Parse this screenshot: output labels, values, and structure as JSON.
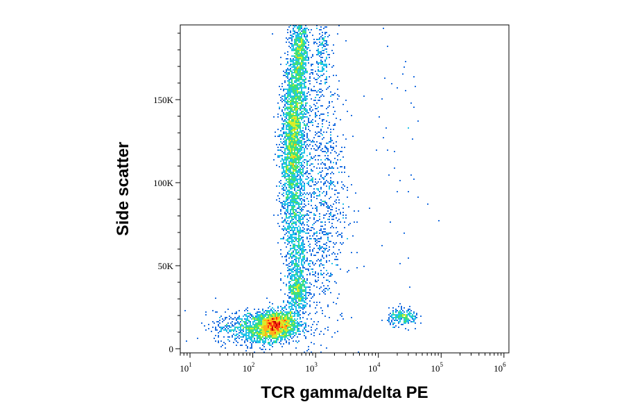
{
  "chart_data": {
    "type": "scatter",
    "style": "flow-cytometry pseudocolor density plot",
    "xlabel": "TCR gamma/delta PE",
    "ylabel": "Side scatter",
    "x_scale": "log",
    "xlim": [
      7,
      1200000
    ],
    "ylim": [
      -2500,
      195000
    ],
    "x_ticks": [
      {
        "base": "10",
        "exp": "1",
        "value": 10
      },
      {
        "base": "10",
        "exp": "2",
        "value": 100
      },
      {
        "base": "10",
        "exp": "3",
        "value": 1000
      },
      {
        "base": "10",
        "exp": "4",
        "value": 10000
      },
      {
        "base": "10",
        "exp": "5",
        "value": 100000
      },
      {
        "base": "10",
        "exp": "6",
        "value": 1000000
      }
    ],
    "y_ticks": [
      {
        "label": "0",
        "value": 0
      },
      {
        "label": "50K",
        "value": 50000
      },
      {
        "label": "100K",
        "value": 100000
      },
      {
        "label": "150K",
        "value": 150000
      }
    ],
    "density_palette": [
      "#0a17b8",
      "#1e6fe0",
      "#22c4e8",
      "#3fe07a",
      "#d8ee2a",
      "#ffb21a",
      "#ff3a10",
      "#c20000"
    ],
    "populations": [
      {
        "x_log10_center": 2.35,
        "x_log10_sd": 0.17,
        "y_center": 14000,
        "y_sd": 4500,
        "count": 1600,
        "rho": 0.2
      },
      {
        "x_log10_center": 2.1,
        "x_log10_sd": 0.35,
        "y_center": 12500,
        "y_sd": 5000,
        "count": 900,
        "rho": 0.0
      },
      {
        "x_log10_center": 2.72,
        "x_log10_sd": 0.08,
        "y_center": 34000,
        "y_sd": 6500,
        "count": 420,
        "rho": 0.0
      },
      {
        "x_log10_center": 2.7,
        "x_log10_sd": 0.09,
        "y_center": 60000,
        "y_sd": 16000,
        "count": 520,
        "rho": 0.0
      },
      {
        "x_log10_center": 2.65,
        "x_log10_sd": 0.1,
        "y_center": 128000,
        "y_sd": 28000,
        "count": 2700,
        "rho": 0.25
      },
      {
        "x_log10_center": 2.76,
        "x_log10_sd": 0.06,
        "y_center": 180000,
        "y_sd": 10000,
        "count": 500,
        "rho": 0.0
      },
      {
        "x_log10_center": 3.05,
        "x_log10_sd": 0.22,
        "y_center": 95000,
        "y_sd": 45000,
        "count": 1100,
        "rho": 0.0
      },
      {
        "x_log10_center": 3.1,
        "x_log10_sd": 0.05,
        "y_center": 178000,
        "y_sd": 12000,
        "count": 150,
        "rho": 0.0
      },
      {
        "x_log10_center": 4.4,
        "x_log10_sd": 0.12,
        "y_center": 19000,
        "y_sd": 2500,
        "count": 220,
        "rho": 0.0
      },
      {
        "x_log10_center": 4.3,
        "x_log10_sd": 0.3,
        "y_center": 110000,
        "y_sd": 50000,
        "count": 45,
        "rho": 0.0
      }
    ]
  }
}
